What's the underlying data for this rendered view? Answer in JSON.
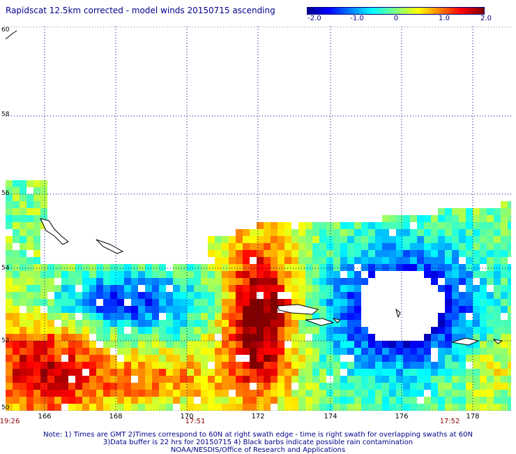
{
  "title": "Rapidscat 12.5km corrected - model winds 20150715 ascending",
  "colorbar": {
    "ticks": [
      "-2.0",
      "-1.0",
      "0",
      "1.0",
      "2.0"
    ],
    "min": -2.0,
    "max": 2.0
  },
  "axes": {
    "lat_labels": [
      "60",
      "58",
      "56",
      "54",
      "52",
      "50"
    ],
    "lon_labels": [
      "166",
      "168",
      "170",
      "172",
      "174",
      "176",
      "178"
    ],
    "lat_range": [
      50,
      60
    ],
    "lon_range": [
      165,
      179
    ]
  },
  "time_labels": [
    "19:26",
    "17:51",
    "17:52"
  ],
  "notes": [
    "Note: 1) Times are GMT 2)Times correspond to 60N at right swath edge - time is right swath for overlapping swaths at 60N",
    "3)Data buffer is 22 hrs for 20150715 4) Black barbs indicate possible rain contamination",
    "NOAA/NESDIS/Office of Research and Applications"
  ],
  "colors": {
    "title": "#00008b",
    "time": "#8b0000",
    "grid": "#000080"
  }
}
